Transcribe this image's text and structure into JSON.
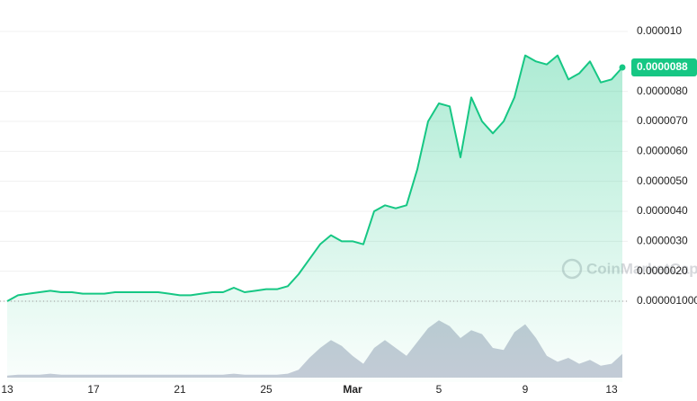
{
  "chart_data": {
    "type": "line",
    "color": "#16c784",
    "volume_color": "#c7cbd8",
    "grid": true,
    "categories": [
      "13",
      null,
      null,
      null,
      null,
      null,
      null,
      null,
      "17",
      null,
      null,
      null,
      null,
      null,
      null,
      null,
      "21",
      null,
      null,
      null,
      null,
      null,
      null,
      null,
      "25",
      null,
      null,
      null,
      null,
      null,
      null,
      null,
      "Mar",
      null,
      null,
      null,
      null,
      null,
      null,
      null,
      "5",
      null,
      null,
      null,
      null,
      null,
      null,
      null,
      "9",
      null,
      null,
      null,
      null,
      null,
      null,
      null,
      "13",
      null
    ],
    "values": [
      1e-06,
      1.2e-06,
      1.25e-06,
      1.3e-06,
      1.35e-06,
      1.3e-06,
      1.3e-06,
      1.25e-06,
      1.25e-06,
      1.25e-06,
      1.3e-06,
      1.3e-06,
      1.3e-06,
      1.3e-06,
      1.3e-06,
      1.25e-06,
      1.2e-06,
      1.2e-06,
      1.25e-06,
      1.3e-06,
      1.3e-06,
      1.45e-06,
      1.3e-06,
      1.35e-06,
      1.4e-06,
      1.4e-06,
      1.5e-06,
      1.9e-06,
      2.4e-06,
      2.9e-06,
      3.2e-06,
      3e-06,
      3e-06,
      2.9e-06,
      4e-06,
      4.2e-06,
      4.1e-06,
      4.2e-06,
      5.4e-06,
      7e-06,
      7.6e-06,
      7.5e-06,
      5.8e-06,
      7.8e-06,
      7e-06,
      6.6e-06,
      7e-06,
      7.8e-06,
      9.2e-06,
      9e-06,
      8.9e-06,
      9.2e-06,
      8.4e-06,
      8.6e-06,
      9e-06,
      8.3e-06,
      8.4e-06,
      8.8e-06
    ],
    "volume": [
      2,
      3,
      3,
      3,
      4,
      3,
      3,
      3,
      3,
      3,
      3,
      3,
      3,
      3,
      3,
      3,
      3,
      3,
      3,
      3,
      3,
      4,
      3,
      3,
      3,
      3,
      4,
      8,
      20,
      30,
      38,
      32,
      22,
      14,
      30,
      38,
      30,
      22,
      36,
      50,
      58,
      52,
      40,
      48,
      44,
      30,
      28,
      46,
      54,
      40,
      22,
      16,
      20,
      14,
      18,
      12,
      14,
      24
    ],
    "vlim": [
      0,
      100
    ],
    "ylim": [
      -1.7e-06,
      1.105e-05
    ],
    "yticks": [
      {
        "value": 1e-05,
        "label": "0.000010"
      },
      {
        "value": 8e-06,
        "label": "0.0000080"
      },
      {
        "value": 7e-06,
        "label": "0.0000070"
      },
      {
        "value": 6e-06,
        "label": "0.0000060"
      },
      {
        "value": 5e-06,
        "label": "0.0000050"
      },
      {
        "value": 4e-06,
        "label": "0.0000040"
      },
      {
        "value": 3e-06,
        "label": "0.0000030"
      },
      {
        "value": 2e-06,
        "label": "0.0000020"
      },
      {
        "value": 1e-06,
        "label": "0.000001000"
      }
    ],
    "last_price_label": "0.0000088",
    "watermark": "CoinMarketCap"
  }
}
